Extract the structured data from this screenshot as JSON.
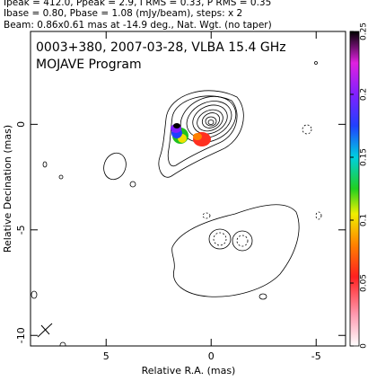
{
  "header": {
    "lines": [
      "Ipeak = 412.0, Ppeak = 2.9, I RMS = 0.33, P RMS = 0.35",
      "Ibase = 0.80, Pbase = 1.08 (mJy/beam), steps: x 2",
      "Beam: 0.86x0.61 mas at -14.9 deg., Nat. Wgt. (no taper)"
    ]
  },
  "chart_data": {
    "type": "contour",
    "title": "0003+380, 2007-03-28, VLBA 15.4 GHz",
    "subtitle": "MOJAVE Program",
    "x_label": "Relative R.A. (mas)",
    "y_label": "Relative Decination (mas)",
    "xlim": [
      8.6,
      -6.4
    ],
    "ylim": [
      -10.5,
      4.4
    ],
    "xticks": [
      5,
      0,
      -5
    ],
    "yticks": [
      0,
      -5,
      -10
    ],
    "colorbar": {
      "lim": [
        0,
        0.25
      ],
      "ticks": [
        0,
        0.05,
        0.1,
        0.15,
        0.2,
        0.25
      ]
    }
  }
}
